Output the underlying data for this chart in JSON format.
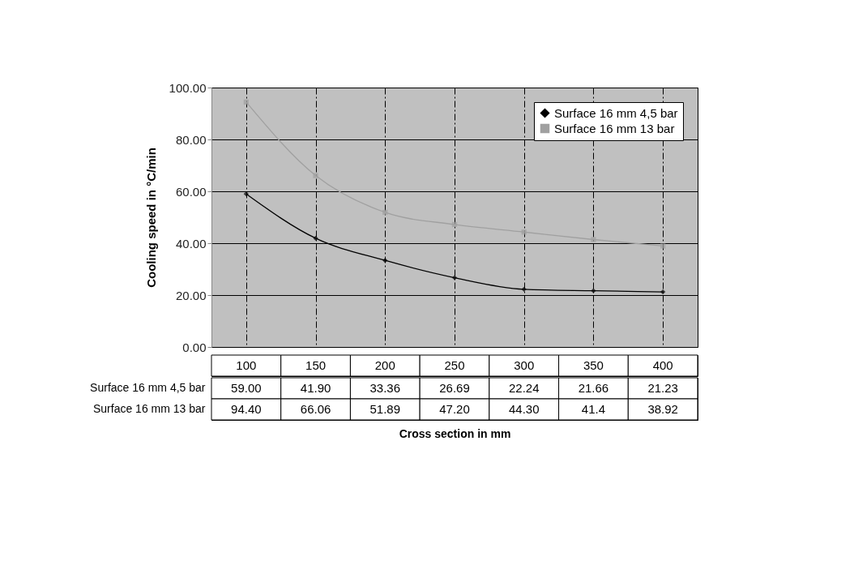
{
  "chart_data": {
    "type": "line",
    "xlabel": "Cross section in mm",
    "ylabel": "Cooling speed in °C/min",
    "categories": [
      "100",
      "150",
      "200",
      "250",
      "300",
      "350",
      "400"
    ],
    "ylim": [
      0,
      100
    ],
    "yticks": [
      {
        "value": 0,
        "label": "0.00"
      },
      {
        "value": 20,
        "label": "20.00"
      },
      {
        "value": 40,
        "label": "40.00"
      },
      {
        "value": 60,
        "label": "60.00"
      },
      {
        "value": 80,
        "label": "80.00"
      },
      {
        "value": 100,
        "label": "100.00"
      }
    ],
    "grid": true,
    "legend": "top right",
    "line_style": "solid",
    "series": [
      {
        "name": "Surface 16 mm 4,5 bar",
        "color": "#000000",
        "marker": "diamond",
        "values": [
          59.0,
          41.9,
          33.36,
          26.69,
          22.24,
          21.66,
          21.23
        ],
        "value_labels": [
          "59.00",
          "41.90",
          "33.36",
          "26.69",
          "22.24",
          "21.66",
          "21.23"
        ]
      },
      {
        "name": "Surface 16 mm 13 bar",
        "color": "#a0a0a0",
        "marker": "square",
        "values": [
          94.4,
          66.06,
          51.89,
          47.2,
          44.3,
          41.4,
          38.92
        ],
        "value_labels": [
          "94.40",
          "66.06",
          "51.89",
          "47.20",
          "44.30",
          "41.4",
          "38.92"
        ]
      }
    ]
  }
}
